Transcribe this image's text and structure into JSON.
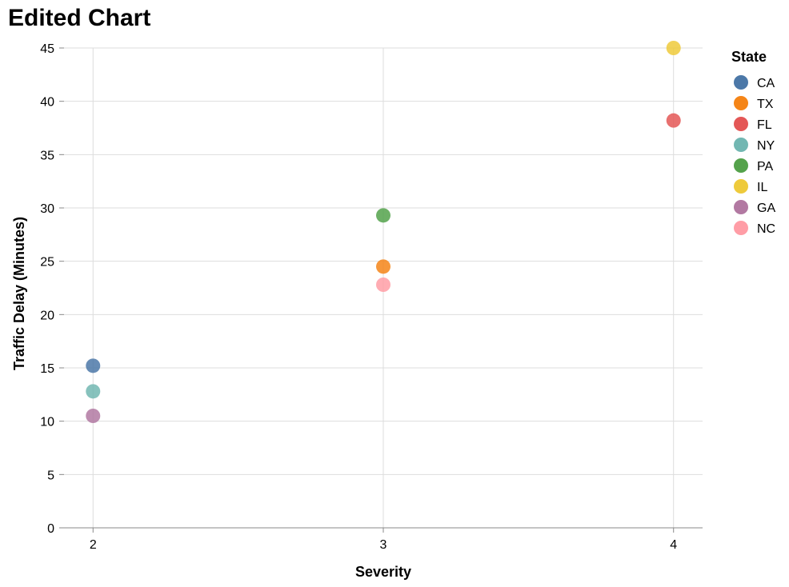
{
  "chart_data": {
    "type": "scatter",
    "title": "Edited Chart",
    "xlabel": "Severity",
    "ylabel": "Traffic Delay (Minutes)",
    "x_ticks": [
      2,
      3,
      4
    ],
    "y_ticks": [
      0,
      5,
      10,
      15,
      20,
      25,
      30,
      35,
      40,
      45
    ],
    "xlim": [
      1.9,
      4.1
    ],
    "ylim": [
      0,
      45
    ],
    "grid": true,
    "legend": {
      "title": "State",
      "placement": "right",
      "entries": [
        {
          "name": "CA",
          "color": "#4c78a8"
        },
        {
          "name": "TX",
          "color": "#f58518"
        },
        {
          "name": "FL",
          "color": "#e45756"
        },
        {
          "name": "NY",
          "color": "#72b7b2"
        },
        {
          "name": "PA",
          "color": "#54a24b"
        },
        {
          "name": "IL",
          "color": "#eeca3b"
        },
        {
          "name": "GA",
          "color": "#b279a2"
        },
        {
          "name": "NC",
          "color": "#ff9da6"
        }
      ]
    },
    "points": [
      {
        "state": "CA",
        "x": 2,
        "y": 15.2
      },
      {
        "state": "TX",
        "x": 3,
        "y": 24.5
      },
      {
        "state": "FL",
        "x": 4,
        "y": 38.2
      },
      {
        "state": "NY",
        "x": 2,
        "y": 12.8
      },
      {
        "state": "PA",
        "x": 3,
        "y": 29.3
      },
      {
        "state": "IL",
        "x": 4,
        "y": 45.0
      },
      {
        "state": "GA",
        "x": 2,
        "y": 10.5
      },
      {
        "state": "NC",
        "x": 3,
        "y": 22.8
      }
    ]
  }
}
